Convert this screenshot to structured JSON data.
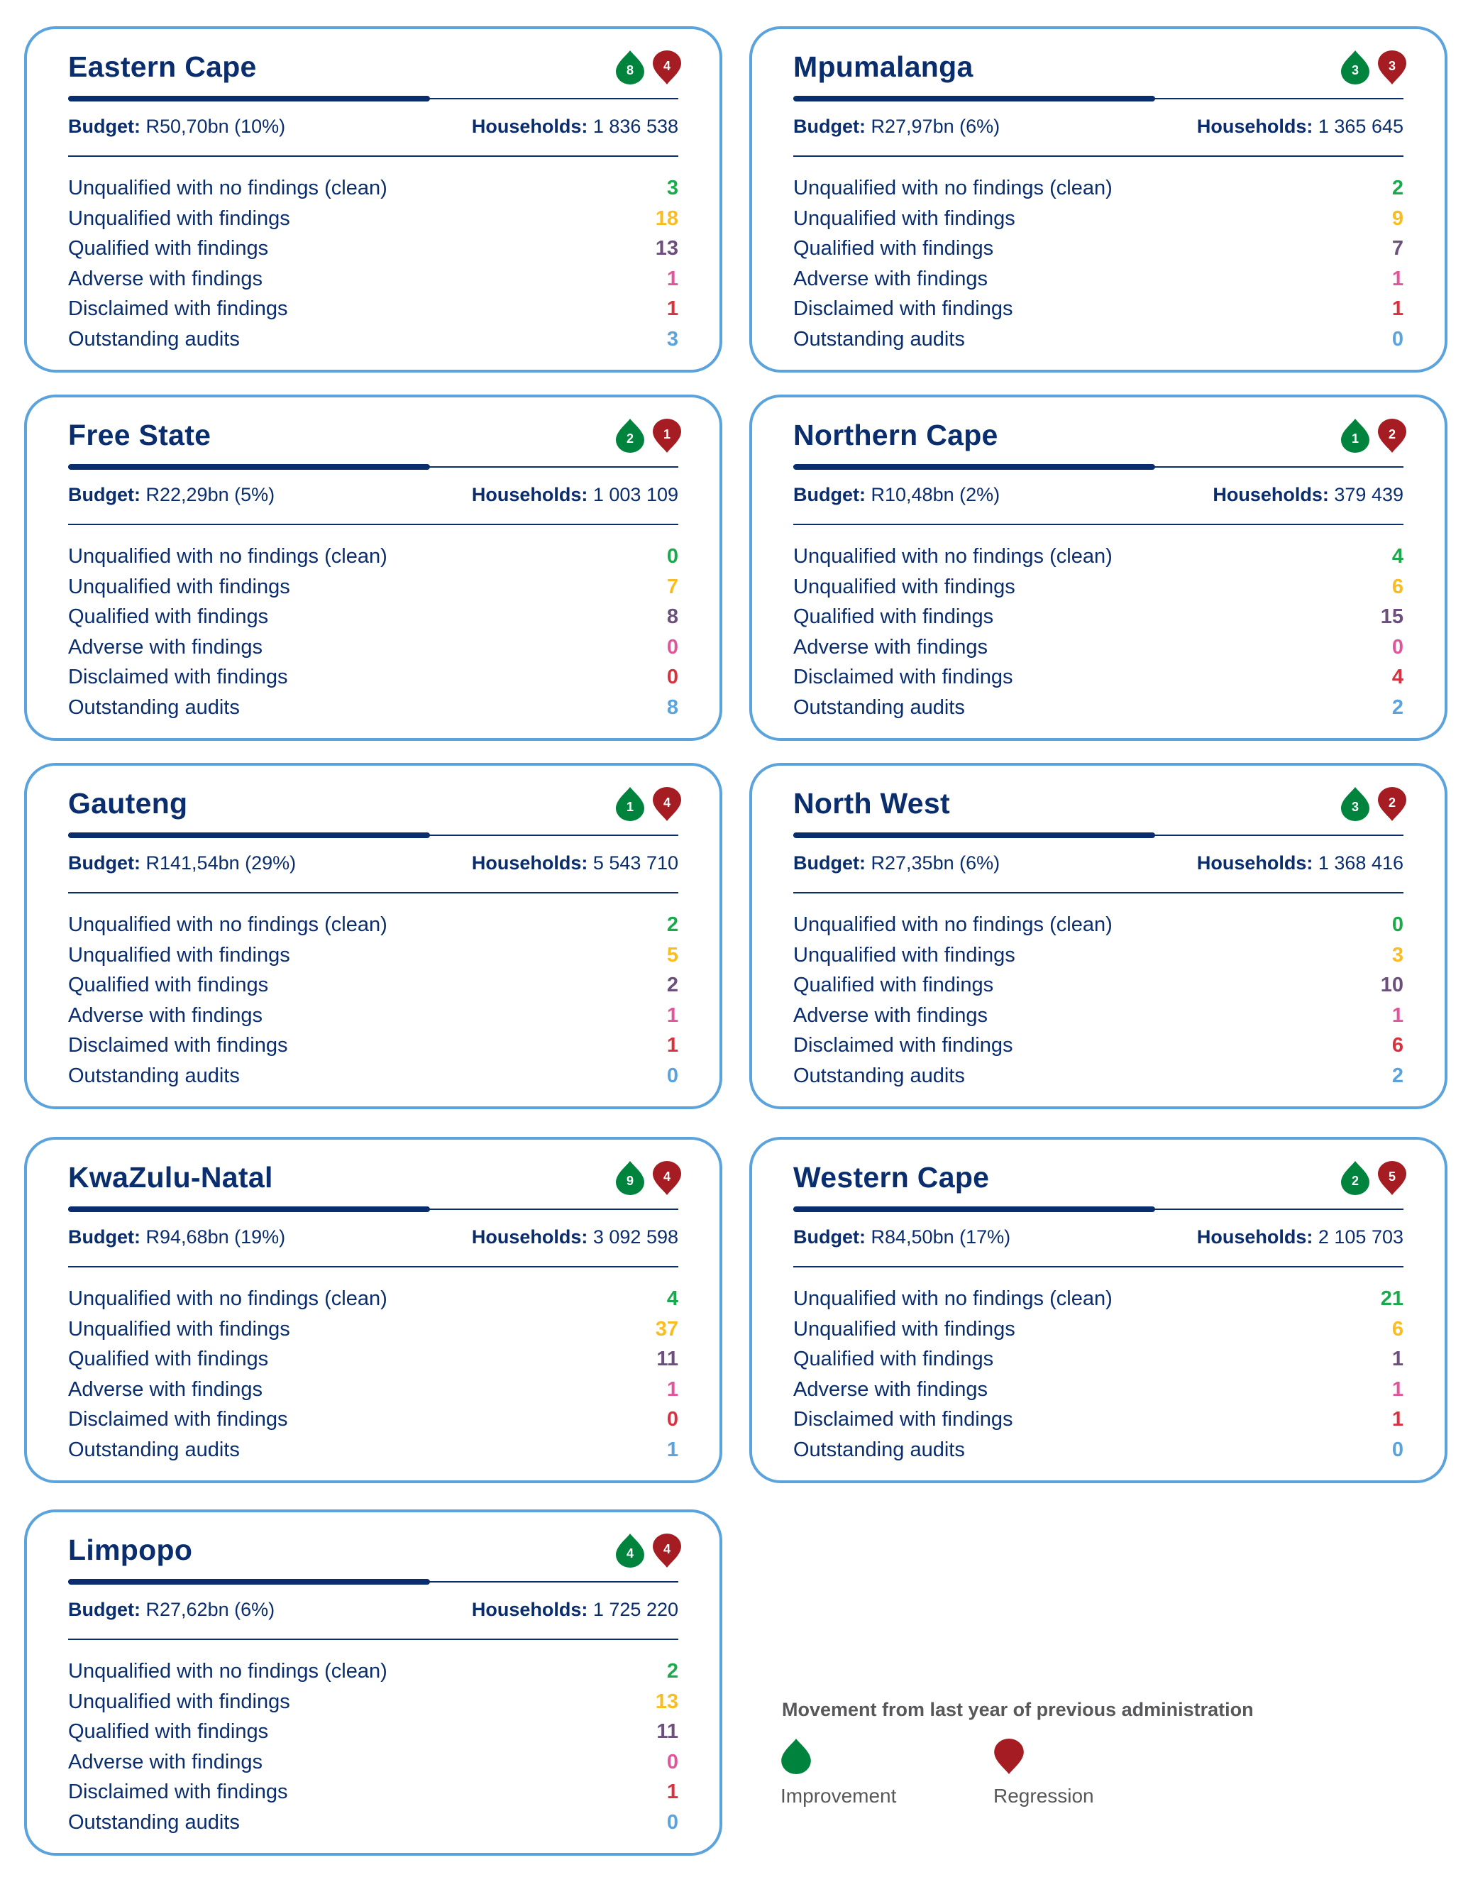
{
  "labels": {
    "budget": "Budget:",
    "households": "Households:",
    "rows": [
      "Unqualified with no findings (clean)",
      "Unqualified with findings",
      "Qualified with findings",
      "Adverse with findings",
      "Disclaimed with findings",
      "Outstanding audits"
    ]
  },
  "colors": {
    "navy": "#0a2d6e",
    "border": "#5ba3dc",
    "improvement": "#00843d",
    "regression": "#a51c22",
    "rows": [
      "#1aaa4b",
      "#f9bd21",
      "#6c4f7c",
      "#e0569b",
      "#d8313f",
      "#5ba3dc"
    ]
  },
  "provinces": [
    {
      "name": "Eastern Cape",
      "improvement": "8",
      "regression": "4",
      "budget": "R50,70bn (10%)",
      "households": "1 836 538",
      "values": [
        "3",
        "18",
        "13",
        "1",
        "1",
        "3"
      ]
    },
    {
      "name": "Mpumalanga",
      "improvement": "3",
      "regression": "3",
      "budget": "R27,97bn (6%)",
      "households": "1 365 645",
      "values": [
        "2",
        "9",
        "7",
        "1",
        "1",
        "0"
      ]
    },
    {
      "name": "Free State",
      "improvement": "2",
      "regression": "1",
      "budget": "R22,29bn (5%)",
      "households": "1 003 109",
      "values": [
        "0",
        "7",
        "8",
        "0",
        "0",
        "8"
      ]
    },
    {
      "name": "Northern Cape",
      "improvement": "1",
      "regression": "2",
      "budget": "R10,48bn (2%)",
      "households": "379 439",
      "values": [
        "4",
        "6",
        "15",
        "0",
        "4",
        "2"
      ]
    },
    {
      "name": "Gauteng",
      "improvement": "1",
      "regression": "4",
      "budget": "R141,54bn (29%)",
      "households": "5 543 710",
      "values": [
        "2",
        "5",
        "2",
        "1",
        "1",
        "0"
      ]
    },
    {
      "name": "North West",
      "improvement": "3",
      "regression": "2",
      "budget": "R27,35bn (6%)",
      "households": "1 368 416",
      "values": [
        "0",
        "3",
        "10",
        "1",
        "6",
        "2"
      ]
    },
    {
      "name": "KwaZulu-Natal",
      "improvement": "9",
      "regression": "4",
      "budget": "R94,68bn (19%)",
      "households": "3 092 598",
      "values": [
        "4",
        "37",
        "11",
        "1",
        "0",
        "1"
      ]
    },
    {
      "name": "Western Cape",
      "improvement": "2",
      "regression": "5",
      "budget": "R84,50bn (17%)",
      "households": "2 105 703",
      "values": [
        "21",
        "6",
        "1",
        "1",
        "1",
        "0"
      ]
    },
    {
      "name": "Limpopo",
      "improvement": "4",
      "regression": "4",
      "budget": "R27,62bn (6%)",
      "households": "1 725 220",
      "values": [
        "2",
        "13",
        "11",
        "0",
        "1",
        "0"
      ]
    }
  ],
  "legend": {
    "title": "Movement from last year of previous administration",
    "improvement_label": "Improvement",
    "regression_label": "Regression",
    "improvement_icon": "teardrop-up-icon",
    "regression_icon": "teardrop-down-icon"
  }
}
